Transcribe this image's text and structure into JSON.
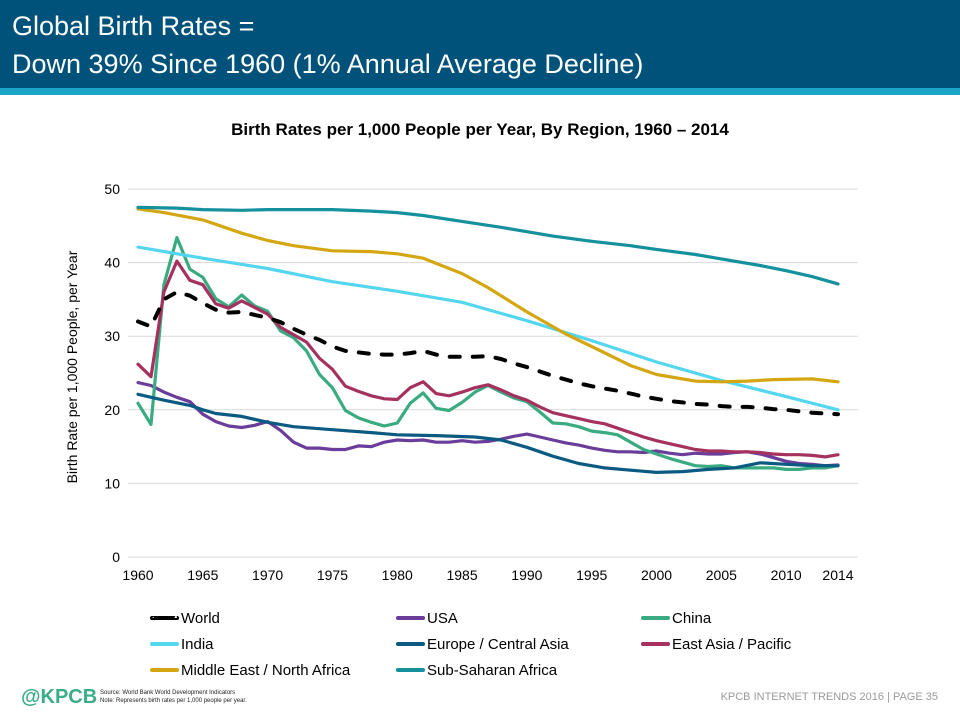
{
  "header": {
    "title_line1": "Global Birth Rates =",
    "title_line2": "Down 39% Since 1960 (1% Annual Average Decline)"
  },
  "footer": {
    "logo": "@KPCB",
    "source": "Source: World Bank World Development Indicators",
    "note": "Note: Represents birth rates per 1,000 people per year.",
    "right": "KPCB INTERNET TRENDS 2016  |  PAGE 35"
  },
  "colors": {
    "header_bg": "#00527a",
    "header_stripe": "#1ba5c9",
    "logo": "#3bae85"
  },
  "chart_data": {
    "type": "line",
    "title": "Birth Rates per 1,000 People per Year, By Region, 1960 – 2014",
    "xlabel": "",
    "ylabel": "Birth Rate per 1,000 People, per Year",
    "xlim": [
      1960,
      2014
    ],
    "ylim": [
      0,
      50
    ],
    "yticks": [
      0,
      10,
      20,
      30,
      40,
      50
    ],
    "xticks": [
      1960,
      1965,
      1970,
      1975,
      1980,
      1985,
      1990,
      1995,
      2000,
      2005,
      2010,
      2014
    ],
    "grid": "horizontal",
    "legend_position": "bottom",
    "series": [
      {
        "name": "World",
        "color": "#000000",
        "dashed": true,
        "x": [
          1960,
          1961,
          1962,
          1963,
          1964,
          1965,
          1966,
          1967,
          1968,
          1969,
          1970,
          1971,
          1972,
          1973,
          1974,
          1975,
          1976,
          1977,
          1978,
          1979,
          1980,
          1981,
          1982,
          1983,
          1984,
          1985,
          1986,
          1987,
          1988,
          1989,
          1990,
          1991,
          1992,
          1993,
          1994,
          1995,
          1996,
          1997,
          1998,
          1999,
          2000,
          2001,
          2002,
          2003,
          2004,
          2005,
          2006,
          2007,
          2008,
          2009,
          2010,
          2011,
          2012,
          2013,
          2014
        ],
        "values": [
          32.0,
          31.3,
          35.0,
          36.0,
          35.5,
          34.5,
          33.6,
          33.2,
          33.3,
          32.9,
          32.5,
          31.9,
          31.0,
          30.2,
          29.5,
          28.6,
          28.0,
          27.8,
          27.6,
          27.5,
          27.5,
          27.7,
          28.0,
          27.5,
          27.2,
          27.2,
          27.2,
          27.3,
          26.9,
          26.3,
          25.8,
          25.2,
          24.6,
          24.1,
          23.6,
          23.2,
          22.9,
          22.6,
          22.2,
          21.8,
          21.5,
          21.2,
          21.0,
          20.8,
          20.7,
          20.5,
          20.4,
          20.4,
          20.3,
          20.1,
          20.0,
          19.8,
          19.6,
          19.5,
          19.4
        ]
      },
      {
        "name": "USA",
        "color": "#6a3d9a",
        "x": [
          1960,
          1961,
          1962,
          1963,
          1964,
          1965,
          1966,
          1967,
          1968,
          1969,
          1970,
          1971,
          1972,
          1973,
          1974,
          1975,
          1976,
          1977,
          1978,
          1979,
          1980,
          1981,
          1982,
          1983,
          1984,
          1985,
          1986,
          1987,
          1988,
          1989,
          1990,
          1991,
          1992,
          1993,
          1994,
          1995,
          1996,
          1997,
          1998,
          1999,
          2000,
          2001,
          2002,
          2003,
          2004,
          2005,
          2006,
          2007,
          2008,
          2009,
          2010,
          2011,
          2012,
          2013,
          2014
        ],
        "values": [
          23.7,
          23.3,
          22.4,
          21.7,
          21.1,
          19.4,
          18.4,
          17.8,
          17.6,
          17.9,
          18.4,
          17.2,
          15.6,
          14.8,
          14.8,
          14.6,
          14.6,
          15.1,
          15.0,
          15.6,
          15.9,
          15.8,
          15.9,
          15.6,
          15.6,
          15.8,
          15.6,
          15.7,
          16.0,
          16.4,
          16.7,
          16.3,
          15.9,
          15.5,
          15.2,
          14.8,
          14.5,
          14.3,
          14.3,
          14.2,
          14.4,
          14.1,
          13.9,
          14.1,
          14.0,
          14.0,
          14.2,
          14.3,
          14.0,
          13.5,
          13.0,
          12.7,
          12.6,
          12.4,
          12.5
        ]
      },
      {
        "name": "China",
        "color": "#3aaa80",
        "x": [
          1960,
          1961,
          1962,
          1963,
          1964,
          1965,
          1966,
          1967,
          1968,
          1969,
          1970,
          1971,
          1972,
          1973,
          1974,
          1975,
          1976,
          1977,
          1978,
          1979,
          1980,
          1981,
          1982,
          1983,
          1984,
          1985,
          1986,
          1987,
          1988,
          1989,
          1990,
          1991,
          1992,
          1993,
          1994,
          1995,
          1996,
          1997,
          1998,
          1999,
          2000,
          2001,
          2002,
          2003,
          2004,
          2005,
          2006,
          2007,
          2008,
          2009,
          2010,
          2011,
          2012,
          2013,
          2014
        ],
        "values": [
          20.9,
          18.0,
          37.0,
          43.4,
          39.1,
          38.0,
          35.1,
          34.0,
          35.6,
          34.1,
          33.4,
          30.7,
          29.8,
          28.0,
          24.8,
          23.0,
          19.9,
          18.9,
          18.3,
          17.8,
          18.2,
          20.9,
          22.3,
          20.2,
          19.9,
          21.0,
          22.4,
          23.3,
          22.4,
          21.6,
          21.1,
          19.7,
          18.2,
          18.1,
          17.7,
          17.1,
          16.9,
          16.6,
          15.6,
          14.6,
          14.0,
          13.4,
          12.9,
          12.4,
          12.3,
          12.4,
          12.1,
          12.1,
          12.1,
          12.1,
          11.9,
          11.9,
          12.1,
          12.1,
          12.4
        ]
      },
      {
        "name": "India",
        "color": "#55d6ef",
        "x": [
          1960,
          1965,
          1970,
          1975,
          1980,
          1985,
          1990,
          1995,
          2000,
          2005,
          2010,
          2014
        ],
        "values": [
          42.1,
          40.6,
          39.2,
          37.4,
          36.1,
          34.6,
          32.1,
          29.4,
          26.5,
          24.0,
          21.8,
          20.0
        ]
      },
      {
        "name": "Europe / Central Asia",
        "color": "#0b5a82",
        "x": [
          1960,
          1962,
          1964,
          1965,
          1966,
          1968,
          1970,
          1972,
          1975,
          1978,
          1980,
          1983,
          1986,
          1988,
          1990,
          1992,
          1994,
          1996,
          1998,
          2000,
          2002,
          2004,
          2006,
          2008,
          2010,
          2012,
          2014
        ],
        "values": [
          22.1,
          21.3,
          20.6,
          20.0,
          19.5,
          19.1,
          18.3,
          17.7,
          17.3,
          16.9,
          16.6,
          16.5,
          16.3,
          15.9,
          14.9,
          13.7,
          12.7,
          12.1,
          11.8,
          11.5,
          11.6,
          11.9,
          12.1,
          12.8,
          12.6,
          12.4,
          12.4
        ]
      },
      {
        "name": "East Asia / Pacific",
        "color": "#a5315e",
        "x": [
          1960,
          1961,
          1962,
          1963,
          1964,
          1965,
          1966,
          1967,
          1968,
          1969,
          1970,
          1971,
          1972,
          1973,
          1974,
          1975,
          1976,
          1977,
          1978,
          1979,
          1980,
          1981,
          1982,
          1983,
          1984,
          1985,
          1986,
          1987,
          1988,
          1989,
          1990,
          1991,
          1992,
          1993,
          1994,
          1995,
          1996,
          1997,
          1998,
          1999,
          2000,
          2001,
          2002,
          2003,
          2004,
          2005,
          2006,
          2007,
          2008,
          2009,
          2010,
          2011,
          2012,
          2013,
          2014
        ],
        "values": [
          26.2,
          24.5,
          36.0,
          40.2,
          37.6,
          37.0,
          34.4,
          33.8,
          34.8,
          33.9,
          33.0,
          31.2,
          30.2,
          29.2,
          27.0,
          25.5,
          23.2,
          22.5,
          21.9,
          21.5,
          21.4,
          23.0,
          23.8,
          22.2,
          21.9,
          22.4,
          23.0,
          23.4,
          22.7,
          21.9,
          21.3,
          20.4,
          19.6,
          19.2,
          18.8,
          18.4,
          18.1,
          17.5,
          16.9,
          16.3,
          15.8,
          15.4,
          15.0,
          14.6,
          14.4,
          14.4,
          14.3,
          14.3,
          14.2,
          14.0,
          13.9,
          13.9,
          13.8,
          13.6,
          13.9
        ]
      },
      {
        "name": "Middle East / North Africa",
        "color": "#d4a712",
        "x": [
          1960,
          1962,
          1965,
          1968,
          1970,
          1972,
          1975,
          1978,
          1980,
          1982,
          1985,
          1987,
          1990,
          1993,
          1995,
          1998,
          2000,
          2003,
          2005,
          2007,
          2009,
          2012,
          2014
        ],
        "values": [
          47.3,
          46.8,
          45.8,
          44.0,
          43.0,
          42.3,
          41.6,
          41.5,
          41.2,
          40.6,
          38.5,
          36.6,
          33.3,
          30.3,
          28.6,
          26.0,
          24.8,
          23.9,
          23.8,
          23.9,
          24.1,
          24.2,
          23.8
        ]
      },
      {
        "name": "Sub-Saharan Africa",
        "color": "#15919e",
        "x": [
          1960,
          1963,
          1965,
          1968,
          1970,
          1973,
          1975,
          1978,
          1980,
          1982,
          1985,
          1988,
          1990,
          1992,
          1995,
          1998,
          2000,
          2003,
          2005,
          2008,
          2010,
          2012,
          2014
        ],
        "values": [
          47.5,
          47.4,
          47.2,
          47.1,
          47.2,
          47.2,
          47.2,
          47.0,
          46.8,
          46.4,
          45.6,
          44.8,
          44.2,
          43.6,
          42.9,
          42.3,
          41.8,
          41.1,
          40.5,
          39.6,
          38.9,
          38.1,
          37.1
        ]
      }
    ]
  }
}
